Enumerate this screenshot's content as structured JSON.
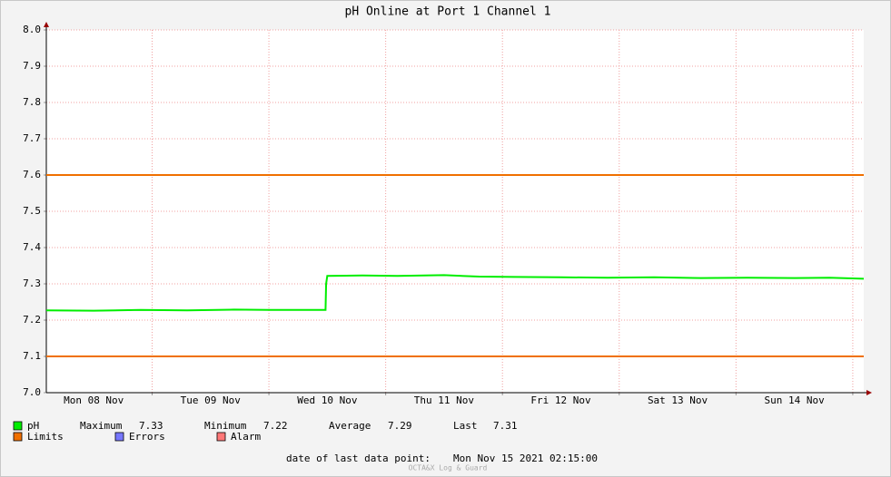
{
  "chart_data": {
    "type": "line",
    "title": "pH Online at Port 1 Channel 1",
    "categories": [
      "Mon 08 Nov",
      "Tue 09 Nov",
      "Wed 10 Nov",
      "Thu 11 Nov",
      "Fri 12 Nov",
      "Sat 13 Nov",
      "Sun 14 Nov"
    ],
    "xlim": [
      -0.406,
      6.594
    ],
    "xgrid": [
      0.5,
      1.5,
      2.5,
      3.5,
      4.5,
      5.5,
      6.5
    ],
    "ylim": [
      7.0,
      8.0
    ],
    "yticks": [
      {
        "value": 7.0,
        "label": "7.0"
      },
      7.1,
      7.2,
      7.3,
      7.4,
      7.5,
      7.6,
      7.7,
      7.8,
      7.9,
      {
        "value": 8.0,
        "label": "8.0"
      }
    ],
    "grid": true,
    "series": [
      {
        "name": "pH",
        "color": "#00ee00",
        "x": [
          -0.406,
          0,
          0.4,
          0.8,
          1.2,
          1.5,
          1.8,
          1.985,
          1.99,
          2.0,
          2.3,
          2.6,
          3.0,
          3.3,
          3.6,
          4.0,
          4.4,
          4.8,
          5.2,
          5.6,
          6.0,
          6.3,
          6.594
        ],
        "values": [
          7.227,
          7.226,
          7.228,
          7.227,
          7.229,
          7.228,
          7.228,
          7.228,
          7.3,
          7.322,
          7.323,
          7.322,
          7.324,
          7.32,
          7.319,
          7.318,
          7.317,
          7.318,
          7.316,
          7.317,
          7.316,
          7.317,
          7.314
        ]
      }
    ],
    "limits": {
      "name": "Limits",
      "color": "#f07000",
      "values": [
        7.1,
        7.6
      ]
    },
    "legend_extra": [
      {
        "name": "Errors",
        "color": "#7777ff"
      },
      {
        "name": "Alarm",
        "color": "#ff7777"
      }
    ],
    "stats": [
      {
        "label": "Maximum",
        "value": 7.33
      },
      {
        "label": "Minimum",
        "value": 7.22
      },
      {
        "label": "Average",
        "value": 7.29
      },
      {
        "label": "Last",
        "value": 7.31
      }
    ],
    "last_data_label": "date of last data point:",
    "last_data": "Mon Nov 15 2021 02:15:00",
    "watermark": "OCTA&X Log & Guard"
  }
}
